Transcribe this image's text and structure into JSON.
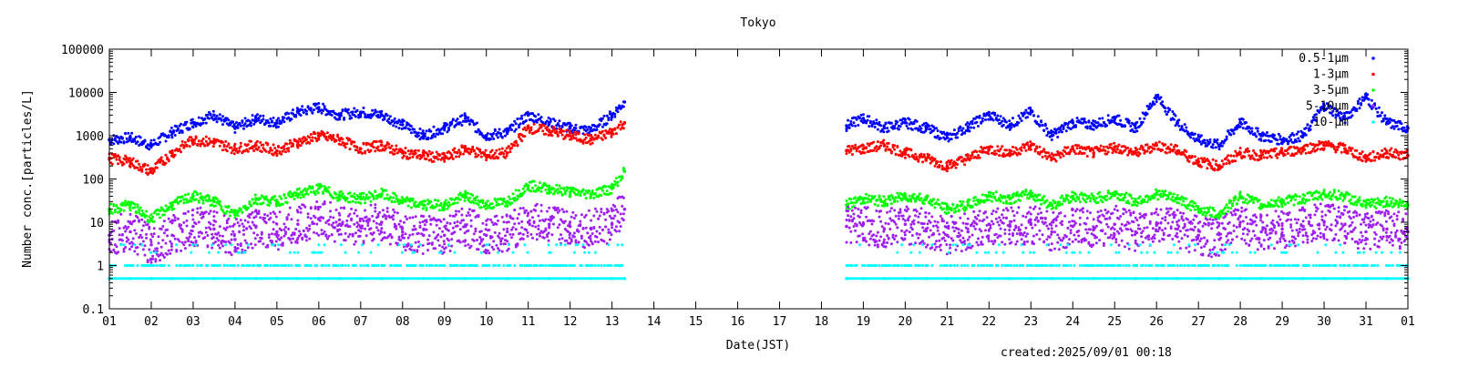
{
  "chart_data": {
    "type": "scatter",
    "title": "Tokyo",
    "xlabel": "Date(JST)",
    "ylabel": "Number conc.[particles/L]",
    "yscale": "log",
    "ylim": [
      0.1,
      100000
    ],
    "y_tick_labels": [
      "0.1",
      "1",
      "10",
      "100",
      "1000",
      "10000",
      "100000"
    ],
    "y_ticks": [
      0.1,
      1,
      10,
      100,
      1000,
      10000,
      100000
    ],
    "x_tick_labels": [
      "01",
      "02",
      "03",
      "04",
      "05",
      "06",
      "07",
      "08",
      "09",
      "10",
      "11",
      "12",
      "13",
      "14",
      "15",
      "16",
      "17",
      "18",
      "19",
      "20",
      "21",
      "22",
      "23",
      "24",
      "25",
      "26",
      "27",
      "28",
      "29",
      "30",
      "31",
      "01"
    ],
    "xlim_days": [
      1,
      32
    ],
    "data_gap": [
      13.35,
      18.6
    ],
    "grid": false,
    "legend_position": "top-right",
    "series": [
      {
        "name": "0.5-1μm",
        "color": "#0000ff",
        "x": [
          1,
          1.5,
          2,
          2.5,
          3,
          3.5,
          4,
          4.5,
          5,
          5.5,
          6,
          6.5,
          7,
          7.5,
          8,
          8.5,
          9,
          9.5,
          10,
          10.5,
          11,
          11.5,
          12,
          12.5,
          13,
          13.3,
          18.6,
          19,
          19.5,
          20,
          20.5,
          21,
          21.5,
          22,
          22.5,
          23,
          23.5,
          24,
          24.5,
          25,
          25.5,
          26,
          26.5,
          27,
          27.5,
          28,
          28.5,
          29,
          29.5,
          30,
          30.5,
          31,
          31.5,
          32
        ],
        "y": [
          800,
          900,
          600,
          1200,
          2000,
          3000,
          1500,
          2500,
          2000,
          3500,
          4500,
          3000,
          3500,
          3000,
          1800,
          1000,
          1500,
          2500,
          1000,
          1200,
          3000,
          2000,
          1500,
          1300,
          3000,
          6000,
          1700,
          2500,
          1500,
          2000,
          1500,
          900,
          1600,
          3000,
          1800,
          3500,
          1000,
          2000,
          1800,
          2500,
          1500,
          8000,
          2000,
          800,
          600,
          2000,
          1000,
          800,
          1000,
          5000,
          2500,
          8000,
          2000,
          1500
        ]
      },
      {
        "name": "1-3μm",
        "color": "#ff0000",
        "x": [
          1,
          1.5,
          2,
          2.5,
          3,
          3.5,
          4,
          4.5,
          5,
          5.5,
          6,
          6.5,
          7,
          7.5,
          8,
          8.5,
          9,
          9.5,
          10,
          10.5,
          11,
          11.5,
          12,
          12.5,
          13,
          13.3,
          18.6,
          19,
          19.5,
          20,
          20.5,
          21,
          21.5,
          22,
          22.5,
          23,
          23.5,
          24,
          24.5,
          25,
          25.5,
          26,
          26.5,
          27,
          27.5,
          28,
          28.5,
          29,
          29.5,
          30,
          30.5,
          31,
          31.5,
          32
        ],
        "y": [
          300,
          250,
          150,
          400,
          800,
          700,
          500,
          600,
          450,
          700,
          1000,
          800,
          500,
          600,
          400,
          350,
          300,
          500,
          350,
          400,
          1500,
          1300,
          1000,
          800,
          1200,
          2000,
          450,
          500,
          600,
          400,
          300,
          200,
          300,
          500,
          400,
          600,
          300,
          500,
          400,
          550,
          400,
          600,
          450,
          250,
          200,
          400,
          350,
          400,
          500,
          600,
          500,
          300,
          400,
          350
        ]
      },
      {
        "name": "3-5μm",
        "color": "#00ff00",
        "x": [
          1,
          1.5,
          2,
          2.5,
          3,
          3.5,
          4,
          4.5,
          5,
          5.5,
          6,
          6.5,
          7,
          7.5,
          8,
          8.5,
          9,
          9.5,
          10,
          10.5,
          11,
          11.5,
          12,
          12.5,
          13,
          13.3,
          18.6,
          19,
          19.5,
          20,
          20.5,
          21,
          21.5,
          22,
          22.5,
          23,
          23.5,
          24,
          24.5,
          25,
          25.5,
          26,
          26.5,
          27,
          27.5,
          28,
          28.5,
          29,
          29.5,
          30,
          30.5,
          31,
          31.5,
          32
        ],
        "y": [
          20,
          25,
          12,
          25,
          40,
          30,
          15,
          35,
          30,
          45,
          60,
          40,
          35,
          45,
          30,
          25,
          25,
          40,
          25,
          30,
          70,
          60,
          50,
          45,
          60,
          150,
          25,
          35,
          30,
          40,
          35,
          20,
          25,
          40,
          35,
          45,
          25,
          40,
          35,
          45,
          30,
          45,
          35,
          20,
          15,
          40,
          25,
          30,
          35,
          45,
          40,
          25,
          30,
          25
        ]
      },
      {
        "name": "5-10μm",
        "color": "#a020f0",
        "x": [
          1,
          1.5,
          2,
          2.5,
          3,
          3.5,
          4,
          4.5,
          5,
          5.5,
          6,
          6.5,
          7,
          7.5,
          8,
          8.5,
          9,
          9.5,
          10,
          10.5,
          11,
          11.5,
          12,
          12.5,
          13,
          13.3,
          18.6,
          19,
          19.5,
          20,
          20.5,
          21,
          21.5,
          22,
          22.5,
          23,
          23.5,
          24,
          24.5,
          25,
          25.5,
          26,
          26.5,
          27,
          27.5,
          28,
          28.5,
          29,
          29.5,
          30,
          30.5,
          31,
          31.5,
          32
        ],
        "y": [
          5,
          6,
          3,
          5,
          8,
          7,
          4,
          8,
          6,
          9,
          12,
          9,
          8,
          10,
          6,
          5,
          5,
          8,
          5,
          6,
          10,
          9,
          8,
          7,
          9,
          20,
          8,
          9,
          7,
          9,
          7,
          5,
          6,
          9,
          8,
          9,
          6,
          8,
          7,
          9,
          6,
          9,
          7,
          5,
          4,
          10,
          6,
          7,
          8,
          10,
          9,
          6,
          7,
          6
        ]
      },
      {
        "name": "10-μm",
        "color": "#00ffff",
        "x": [
          1,
          1.5,
          2,
          2.5,
          3,
          3.5,
          4,
          4.5,
          5,
          5.5,
          6,
          6.5,
          7,
          7.5,
          8,
          8.5,
          9,
          9.5,
          10,
          10.5,
          11,
          11.5,
          12,
          12.5,
          13,
          13.3,
          18.6,
          19,
          19.5,
          20,
          20.5,
          21,
          21.5,
          22,
          22.5,
          23,
          23.5,
          24,
          24.5,
          25,
          25.5,
          26,
          26.5,
          27,
          27.5,
          28,
          28.5,
          29,
          29.5,
          30,
          30.5,
          31,
          31.5,
          32
        ],
        "y": [
          0.5,
          0.5,
          0.5,
          0.5,
          0.5,
          0.5,
          0.5,
          0.5,
          0.5,
          0.5,
          0.5,
          0.5,
          0.5,
          0.5,
          0.5,
          0.5,
          0.5,
          0.5,
          0.5,
          0.5,
          0.5,
          0.5,
          0.5,
          0.5,
          0.5,
          0.5,
          0.5,
          0.5,
          0.5,
          0.5,
          0.5,
          0.5,
          0.5,
          0.5,
          0.5,
          0.5,
          0.5,
          0.5,
          0.5,
          0.5,
          0.5,
          0.5,
          0.5,
          0.5,
          0.5,
          0.5,
          0.5,
          0.5,
          0.5,
          0.5,
          0.5,
          0.5,
          0.5,
          0.5
        ]
      }
    ]
  },
  "created_text": "created:2025/09/01 00:18"
}
